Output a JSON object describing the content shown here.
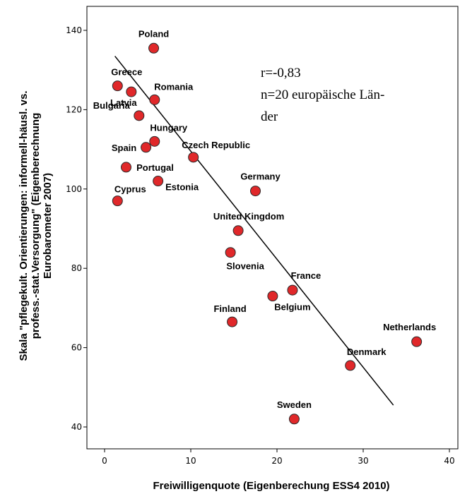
{
  "chart_data": {
    "type": "scatter",
    "xlabel": "Freiwilligenquote (Eigenberechung ESS4 2010)",
    "ylabel_lines": [
      "Skala \"pflegekult. Orientierungen: informell-häusl. vs.",
      "profess.-stat.Versorgung\" (Eigenberechnung",
      "Eurobarometer 2007)"
    ],
    "xlim": [
      -2,
      41
    ],
    "ylim": [
      35,
      145
    ],
    "xticks": [
      0,
      10,
      20,
      30,
      40
    ],
    "yticks": [
      40,
      60,
      80,
      100,
      120,
      140
    ],
    "annotation": [
      "r=-0,83",
      "n=20 europäische Län-",
      "der"
    ],
    "point_color": "#e0282a",
    "points": [
      {
        "label": "Poland",
        "x": 5.7,
        "y": 135.5
      },
      {
        "label": "Greece",
        "x": 1.5,
        "y": 126
      },
      {
        "label": "Romania",
        "x": 5.8,
        "y": 122.5
      },
      {
        "label": "Bulgaria",
        "x": 4,
        "y": 118.5
      },
      {
        "label": "Latvia",
        "x": 3.1,
        "y": 124.5
      },
      {
        "label": "Hungary",
        "x": 5.8,
        "y": 112
      },
      {
        "label": "Spain",
        "x": 4.8,
        "y": 110.5
      },
      {
        "label": "Czech Republic",
        "x": 10.3,
        "y": 108
      },
      {
        "label": "Portugal",
        "x": 2.5,
        "y": 105.5
      },
      {
        "label": "Cyprus",
        "x": 1.5,
        "y": 97
      },
      {
        "label": "Estonia",
        "x": 6.2,
        "y": 102
      },
      {
        "label": "Germany",
        "x": 17.5,
        "y": 99.5
      },
      {
        "label": "United Kingdom",
        "x": 15.5,
        "y": 89.5
      },
      {
        "label": "Slovenia",
        "x": 14.6,
        "y": 84
      },
      {
        "label": "France",
        "x": 21.8,
        "y": 74.5
      },
      {
        "label": "Belgium",
        "x": 19.5,
        "y": 73
      },
      {
        "label": "Finland",
        "x": 14.8,
        "y": 66.5
      },
      {
        "label": "Netherlands",
        "x": 36.2,
        "y": 61.5
      },
      {
        "label": "Denmark",
        "x": 28.5,
        "y": 55.5
      },
      {
        "label": "Sweden",
        "x": 22,
        "y": 42
      }
    ],
    "fit_line": {
      "x0": 1.2,
      "y0": 133.5,
      "x1": 33.5,
      "y1": 45.5
    }
  }
}
